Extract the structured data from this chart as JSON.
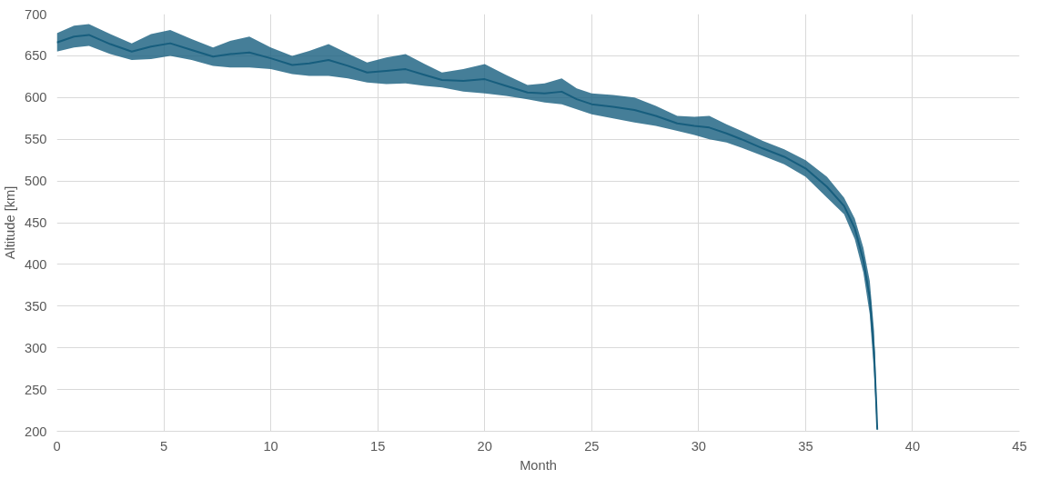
{
  "chart_data": {
    "type": "line",
    "xlabel": "Month",
    "ylabel": "Altitude [km]",
    "xlim": [
      0,
      45
    ],
    "xticks": [
      0,
      5,
      10,
      15,
      20,
      25,
      30,
      35,
      40,
      45
    ],
    "ylim": [
      200,
      700
    ],
    "yticks": [
      200,
      250,
      300,
      350,
      400,
      450,
      500,
      550,
      600,
      650,
      700
    ],
    "grid": true,
    "marker": "none",
    "line_style": "solid",
    "series": [
      {
        "color": "#175e7e",
        "x": [
          0,
          0.8,
          1.5,
          2.5,
          3.5,
          4.4,
          5.3,
          6.3,
          7.3,
          8.1,
          9,
          10,
          11,
          11.8,
          12.7,
          13.6,
          14.5,
          15.4,
          16.3,
          17.2,
          18,
          19,
          20,
          21,
          22,
          22.8,
          23.6,
          24.3,
          25,
          26,
          27,
          28,
          29,
          29.8,
          30.5,
          31.3,
          32,
          33,
          34,
          35,
          36,
          36.8,
          37.3,
          37.7,
          38,
          38.2,
          38.3,
          38.35
        ],
        "values": [
          666,
          673,
          675,
          664,
          655,
          661,
          665,
          657,
          649,
          652,
          654,
          647,
          639,
          641,
          645,
          638,
          630,
          632,
          634,
          627,
          621,
          620,
          622,
          614,
          606,
          605,
          607,
          598,
          592,
          589,
          585,
          578,
          569,
          566,
          564,
          557,
          550,
          539,
          529,
          515,
          493,
          470,
          443,
          405,
          360,
          295,
          235,
          202
        ],
        "lower": [
          655,
          660,
          662,
          652,
          645,
          646,
          650,
          645,
          638,
          636,
          636,
          634,
          628,
          626,
          626,
          623,
          618,
          616,
          617,
          614,
          612,
          607,
          605,
          602,
          598,
          594,
          592,
          586,
          580,
          575,
          570,
          566,
          560,
          555,
          550,
          546,
          540,
          530,
          520,
          505,
          480,
          460,
          430,
          390,
          340,
          270,
          220,
          200
        ],
        "upper": [
          677,
          686,
          688,
          676,
          665,
          676,
          681,
          670,
          660,
          668,
          673,
          660,
          650,
          656,
          664,
          653,
          642,
          648,
          652,
          640,
          630,
          634,
          640,
          627,
          615,
          617,
          623,
          611,
          605,
          603,
          600,
          590,
          578,
          577,
          578,
          568,
          560,
          548,
          538,
          525,
          505,
          480,
          455,
          420,
          380,
          320,
          250,
          205
        ]
      }
    ]
  }
}
